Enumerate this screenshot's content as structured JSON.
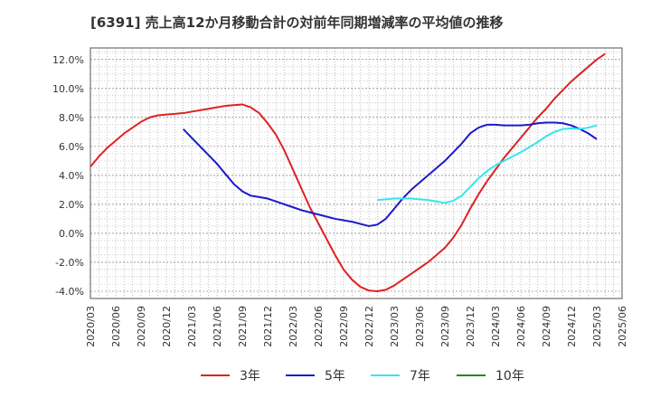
{
  "chart_data": {
    "type": "line",
    "title": "[6391]  売上高12か月移動合計の対前年同期増減率の平均値の推移",
    "ylim": [
      -4.5,
      12.8
    ],
    "y_ticks": [
      -4,
      -2,
      0,
      2,
      4,
      6,
      8,
      10,
      12
    ],
    "y_tick_labels": [
      "-4.0%",
      "-2.0%",
      "0.0%",
      "2.0%",
      "4.0%",
      "6.0%",
      "8.0%",
      "10.0%",
      "12.0%"
    ],
    "x_start": "2020/03",
    "x_end": "2025/06",
    "x_tick_labels": [
      "2020/03",
      "2020/06",
      "2020/09",
      "2020/12",
      "2021/03",
      "2021/06",
      "2021/09",
      "2021/12",
      "2022/03",
      "2022/06",
      "2022/09",
      "2022/12",
      "2023/03",
      "2023/06",
      "2023/09",
      "2023/12",
      "2024/03",
      "2024/06",
      "2024/09",
      "2024/12",
      "2025/03",
      "2025/06"
    ],
    "grid": true,
    "legend_position": "bottom",
    "series": [
      {
        "name": "3年",
        "color": "#dd2222",
        "points": [
          [
            "2020/03",
            4.6
          ],
          [
            "2020/04",
            5.3
          ],
          [
            "2020/05",
            5.9
          ],
          [
            "2020/06",
            6.4
          ],
          [
            "2020/07",
            6.9
          ],
          [
            "2020/08",
            7.3
          ],
          [
            "2020/09",
            7.7
          ],
          [
            "2020/10",
            8.0
          ],
          [
            "2020/11",
            8.15
          ],
          [
            "2020/12",
            8.2
          ],
          [
            "2021/01",
            8.25
          ],
          [
            "2021/02",
            8.3
          ],
          [
            "2021/03",
            8.4
          ],
          [
            "2021/04",
            8.5
          ],
          [
            "2021/05",
            8.6
          ],
          [
            "2021/06",
            8.7
          ],
          [
            "2021/07",
            8.8
          ],
          [
            "2021/08",
            8.85
          ],
          [
            "2021/09",
            8.9
          ],
          [
            "2021/10",
            8.7
          ],
          [
            "2021/11",
            8.3
          ],
          [
            "2021/12",
            7.6
          ],
          [
            "2022/01",
            6.8
          ],
          [
            "2022/02",
            5.7
          ],
          [
            "2022/03",
            4.4
          ],
          [
            "2022/04",
            3.1
          ],
          [
            "2022/05",
            1.8
          ],
          [
            "2022/06",
            0.7
          ],
          [
            "2022/07",
            -0.4
          ],
          [
            "2022/08",
            -1.5
          ],
          [
            "2022/09",
            -2.5
          ],
          [
            "2022/10",
            -3.2
          ],
          [
            "2022/11",
            -3.7
          ],
          [
            "2022/12",
            -3.95
          ],
          [
            "2023/01",
            -4.0
          ],
          [
            "2023/02",
            -3.9
          ],
          [
            "2023/03",
            -3.6
          ],
          [
            "2023/04",
            -3.2
          ],
          [
            "2023/05",
            -2.8
          ],
          [
            "2023/06",
            -2.4
          ],
          [
            "2023/07",
            -2.0
          ],
          [
            "2023/08",
            -1.5
          ],
          [
            "2023/09",
            -1.0
          ],
          [
            "2023/10",
            -0.3
          ],
          [
            "2023/11",
            0.6
          ],
          [
            "2023/12",
            1.7
          ],
          [
            "2024/01",
            2.7
          ],
          [
            "2024/02",
            3.6
          ],
          [
            "2024/03",
            4.4
          ],
          [
            "2024/04",
            5.2
          ],
          [
            "2024/05",
            5.9
          ],
          [
            "2024/06",
            6.6
          ],
          [
            "2024/07",
            7.3
          ],
          [
            "2024/08",
            8.0
          ],
          [
            "2024/09",
            8.6
          ],
          [
            "2024/10",
            9.3
          ],
          [
            "2024/11",
            9.9
          ],
          [
            "2024/12",
            10.5
          ],
          [
            "2025/01",
            11.0
          ],
          [
            "2025/02",
            11.5
          ],
          [
            "2025/03",
            12.0
          ],
          [
            "2025/04",
            12.4
          ]
        ]
      },
      {
        "name": "5年",
        "color": "#1a1acc",
        "points": [
          [
            "2021/02",
            7.2
          ],
          [
            "2021/03",
            6.6
          ],
          [
            "2021/04",
            6.0
          ],
          [
            "2021/05",
            5.4
          ],
          [
            "2021/06",
            4.8
          ],
          [
            "2021/07",
            4.1
          ],
          [
            "2021/08",
            3.4
          ],
          [
            "2021/09",
            2.9
          ],
          [
            "2021/10",
            2.6
          ],
          [
            "2021/11",
            2.5
          ],
          [
            "2021/12",
            2.4
          ],
          [
            "2022/01",
            2.2
          ],
          [
            "2022/02",
            2.0
          ],
          [
            "2022/03",
            1.8
          ],
          [
            "2022/04",
            1.6
          ],
          [
            "2022/05",
            1.45
          ],
          [
            "2022/06",
            1.3
          ],
          [
            "2022/07",
            1.15
          ],
          [
            "2022/08",
            1.0
          ],
          [
            "2022/09",
            0.9
          ],
          [
            "2022/10",
            0.8
          ],
          [
            "2022/11",
            0.65
          ],
          [
            "2022/12",
            0.5
          ],
          [
            "2023/01",
            0.6
          ],
          [
            "2023/02",
            1.0
          ],
          [
            "2023/03",
            1.7
          ],
          [
            "2023/04",
            2.4
          ],
          [
            "2023/05",
            3.0
          ],
          [
            "2023/06",
            3.5
          ],
          [
            "2023/07",
            4.0
          ],
          [
            "2023/08",
            4.5
          ],
          [
            "2023/09",
            5.0
          ],
          [
            "2023/10",
            5.6
          ],
          [
            "2023/11",
            6.2
          ],
          [
            "2023/12",
            6.9
          ],
          [
            "2024/01",
            7.3
          ],
          [
            "2024/02",
            7.5
          ],
          [
            "2024/03",
            7.5
          ],
          [
            "2024/04",
            7.45
          ],
          [
            "2024/05",
            7.45
          ],
          [
            "2024/06",
            7.45
          ],
          [
            "2024/07",
            7.5
          ],
          [
            "2024/08",
            7.6
          ],
          [
            "2024/09",
            7.65
          ],
          [
            "2024/10",
            7.65
          ],
          [
            "2024/11",
            7.6
          ],
          [
            "2024/12",
            7.45
          ],
          [
            "2025/01",
            7.2
          ],
          [
            "2025/02",
            6.9
          ],
          [
            "2025/03",
            6.5
          ]
        ]
      },
      {
        "name": "7年",
        "color": "#33e6ee",
        "points": [
          [
            "2023/01",
            2.3
          ],
          [
            "2023/02",
            2.35
          ],
          [
            "2023/03",
            2.4
          ],
          [
            "2023/04",
            2.4
          ],
          [
            "2023/05",
            2.4
          ],
          [
            "2023/06",
            2.35
          ],
          [
            "2023/07",
            2.3
          ],
          [
            "2023/08",
            2.2
          ],
          [
            "2023/09",
            2.1
          ],
          [
            "2023/10",
            2.25
          ],
          [
            "2023/11",
            2.6
          ],
          [
            "2023/12",
            3.2
          ],
          [
            "2024/01",
            3.8
          ],
          [
            "2024/02",
            4.3
          ],
          [
            "2024/03",
            4.7
          ],
          [
            "2024/04",
            5.0
          ],
          [
            "2024/05",
            5.3
          ],
          [
            "2024/06",
            5.6
          ],
          [
            "2024/07",
            5.95
          ],
          [
            "2024/08",
            6.3
          ],
          [
            "2024/09",
            6.7
          ],
          [
            "2024/10",
            7.0
          ],
          [
            "2024/11",
            7.2
          ],
          [
            "2024/12",
            7.25
          ],
          [
            "2025/01",
            7.2
          ],
          [
            "2025/02",
            7.3
          ],
          [
            "2025/03",
            7.45
          ]
        ]
      },
      {
        "name": "10年",
        "color": "#228822",
        "points": []
      }
    ]
  }
}
